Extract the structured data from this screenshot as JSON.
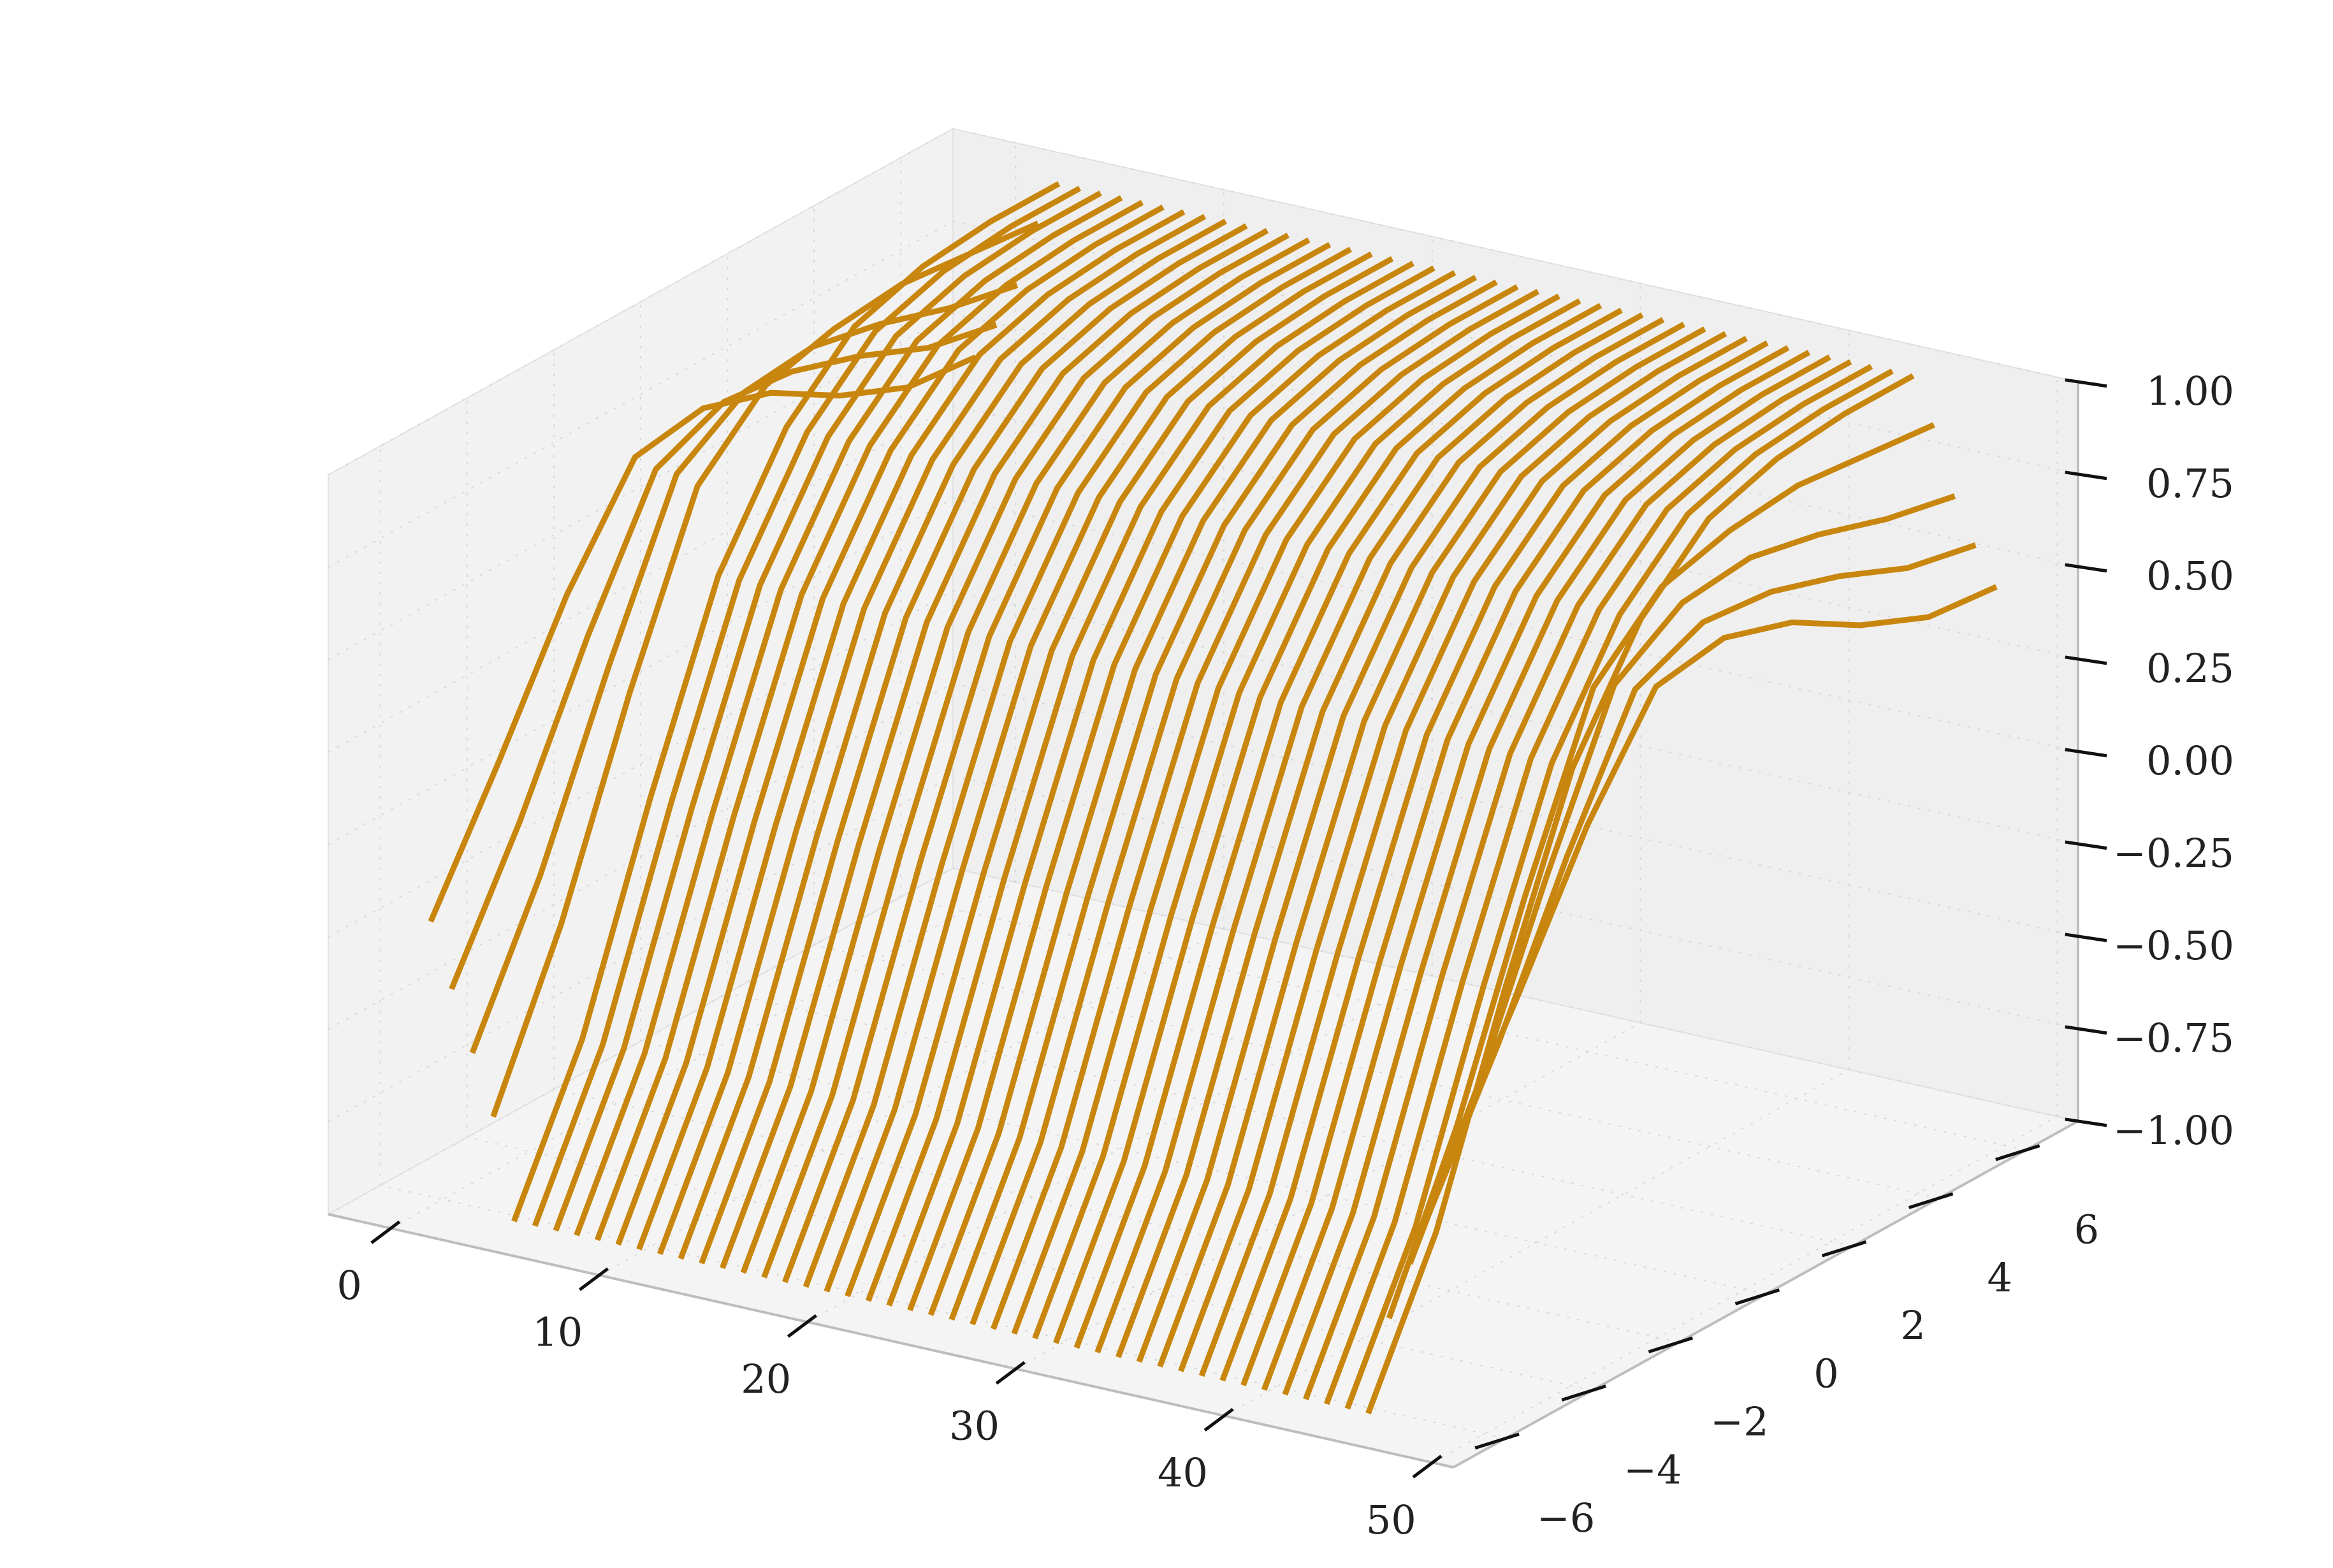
{
  "chart_data": {
    "type": "line",
    "title": "",
    "xlabel": "",
    "ylabel": "",
    "zlabel": "",
    "xlim": [
      -3,
      51
    ],
    "ylim": [
      -7.2,
      7.2
    ],
    "zlim": [
      -1,
      1
    ],
    "x_ticks": [
      "0",
      "10",
      "20",
      "30",
      "40",
      "50"
    ],
    "y_ticks": [
      "−6",
      "−4",
      "−2",
      "0",
      "2",
      "4",
      "6"
    ],
    "z_ticks": [
      "−1.00",
      "−0.75",
      "−0.50",
      "−0.25",
      "0.00",
      "0.25",
      "0.50",
      "0.75",
      "1.00"
    ],
    "grid": true,
    "line_color": "#c8860e",
    "pane_color": "#f2f2f2",
    "y_values": [
      -6.28,
      -4.71,
      -3.14,
      -1.57,
      0,
      1.57,
      3.14,
      4.71,
      6.28
    ],
    "series_note_x": [
      0,
      1,
      2,
      3,
      4,
      5,
      6,
      7,
      8,
      9,
      10,
      11,
      12,
      13,
      14,
      15,
      16,
      17,
      18,
      19,
      20,
      21,
      22,
      23,
      24,
      25,
      26,
      27,
      28,
      29,
      30,
      31,
      32,
      33,
      34,
      35,
      36,
      37,
      38,
      39,
      40,
      41,
      42,
      43,
      44,
      45,
      46,
      47,
      48,
      49
    ],
    "series": [
      {
        "x": 0,
        "z": [
          -0.23,
          0.1,
          0.45,
          0.72,
          0.75,
          0.69,
          0.58,
          0.5,
          0.48
        ]
      },
      {
        "x": 1,
        "z": [
          -0.4,
          -0.05,
          0.35,
          0.7,
          0.78,
          0.76,
          0.7,
          0.62,
          0.58
        ]
      },
      {
        "x": 2,
        "z": [
          -0.56,
          -0.18,
          0.28,
          0.7,
          0.82,
          0.84,
          0.8,
          0.74,
          0.7
        ]
      },
      {
        "x": 3,
        "z": [
          -0.72,
          -0.3,
          0.22,
          0.68,
          0.85,
          0.9,
          0.92,
          0.9,
          0.88
        ]
      },
      {
        "x": 4,
        "z": [
          -0.99,
          -0.6,
          -0.05,
          0.45,
          0.75,
          0.92,
          0.98,
          1.0,
          1.0
        ]
      },
      {
        "x": 5,
        "z": [
          -0.99,
          -0.6,
          -0.05,
          0.45,
          0.75,
          0.92,
          0.98,
          1.0,
          1.0
        ]
      },
      {
        "x": 6,
        "z": [
          -0.99,
          -0.6,
          -0.05,
          0.45,
          0.75,
          0.92,
          0.98,
          1.0,
          1.0
        ]
      },
      {
        "x": 7,
        "z": [
          -0.99,
          -0.6,
          -0.05,
          0.45,
          0.75,
          0.92,
          0.98,
          1.0,
          1.0
        ]
      },
      {
        "x": 8,
        "z": [
          -0.99,
          -0.6,
          -0.05,
          0.45,
          0.75,
          0.92,
          0.98,
          1.0,
          1.0
        ]
      },
      {
        "x": 9,
        "z": [
          -0.99,
          -0.6,
          -0.05,
          0.45,
          0.75,
          0.92,
          0.98,
          1.0,
          1.0
        ]
      },
      {
        "x": 10,
        "z": [
          -0.99,
          -0.6,
          -0.05,
          0.45,
          0.75,
          0.92,
          0.98,
          1.0,
          1.0
        ]
      },
      {
        "x": 11,
        "z": [
          -0.99,
          -0.6,
          -0.05,
          0.45,
          0.75,
          0.92,
          0.98,
          1.0,
          1.0
        ]
      },
      {
        "x": 12,
        "z": [
          -0.99,
          -0.6,
          -0.05,
          0.45,
          0.75,
          0.92,
          0.98,
          1.0,
          1.0
        ]
      },
      {
        "x": 13,
        "z": [
          -0.99,
          -0.6,
          -0.05,
          0.45,
          0.75,
          0.92,
          0.98,
          1.0,
          1.0
        ]
      },
      {
        "x": 14,
        "z": [
          -0.99,
          -0.6,
          -0.05,
          0.45,
          0.75,
          0.92,
          0.98,
          1.0,
          1.0
        ]
      },
      {
        "x": 15,
        "z": [
          -0.99,
          -0.6,
          -0.05,
          0.45,
          0.75,
          0.92,
          0.98,
          1.0,
          1.0
        ]
      },
      {
        "x": 16,
        "z": [
          -0.99,
          -0.6,
          -0.05,
          0.45,
          0.75,
          0.92,
          0.98,
          1.0,
          1.0
        ]
      },
      {
        "x": 17,
        "z": [
          -0.99,
          -0.6,
          -0.05,
          0.45,
          0.75,
          0.92,
          0.98,
          1.0,
          1.0
        ]
      },
      {
        "x": 18,
        "z": [
          -0.99,
          -0.6,
          -0.05,
          0.45,
          0.75,
          0.92,
          0.98,
          1.0,
          1.0
        ]
      },
      {
        "x": 19,
        "z": [
          -0.99,
          -0.6,
          -0.05,
          0.45,
          0.75,
          0.92,
          0.98,
          1.0,
          1.0
        ]
      },
      {
        "x": 20,
        "z": [
          -0.99,
          -0.6,
          -0.05,
          0.45,
          0.75,
          0.92,
          0.98,
          1.0,
          1.0
        ]
      },
      {
        "x": 21,
        "z": [
          -0.99,
          -0.6,
          -0.05,
          0.45,
          0.75,
          0.92,
          0.98,
          1.0,
          1.0
        ]
      },
      {
        "x": 22,
        "z": [
          -0.99,
          -0.6,
          -0.05,
          0.45,
          0.75,
          0.92,
          0.98,
          1.0,
          1.0
        ]
      },
      {
        "x": 23,
        "z": [
          -0.99,
          -0.6,
          -0.05,
          0.45,
          0.75,
          0.92,
          0.98,
          1.0,
          1.0
        ]
      },
      {
        "x": 24,
        "z": [
          -0.99,
          -0.6,
          -0.05,
          0.45,
          0.75,
          0.92,
          0.98,
          1.0,
          1.0
        ]
      },
      {
        "x": 25,
        "z": [
          -0.99,
          -0.6,
          -0.05,
          0.45,
          0.75,
          0.92,
          0.98,
          1.0,
          1.0
        ]
      },
      {
        "x": 26,
        "z": [
          -0.99,
          -0.6,
          -0.05,
          0.45,
          0.75,
          0.92,
          0.98,
          1.0,
          1.0
        ]
      },
      {
        "x": 27,
        "z": [
          -0.99,
          -0.6,
          -0.05,
          0.45,
          0.75,
          0.92,
          0.98,
          1.0,
          1.0
        ]
      },
      {
        "x": 28,
        "z": [
          -0.99,
          -0.6,
          -0.05,
          0.45,
          0.75,
          0.92,
          0.98,
          1.0,
          1.0
        ]
      },
      {
        "x": 29,
        "z": [
          -0.99,
          -0.6,
          -0.05,
          0.45,
          0.75,
          0.92,
          0.98,
          1.0,
          1.0
        ]
      },
      {
        "x": 30,
        "z": [
          -0.99,
          -0.6,
          -0.05,
          0.45,
          0.75,
          0.92,
          0.98,
          1.0,
          1.0
        ]
      },
      {
        "x": 31,
        "z": [
          -0.99,
          -0.6,
          -0.05,
          0.45,
          0.75,
          0.92,
          0.98,
          1.0,
          1.0
        ]
      },
      {
        "x": 32,
        "z": [
          -0.99,
          -0.6,
          -0.05,
          0.45,
          0.75,
          0.92,
          0.98,
          1.0,
          1.0
        ]
      },
      {
        "x": 33,
        "z": [
          -0.99,
          -0.6,
          -0.05,
          0.45,
          0.75,
          0.92,
          0.98,
          1.0,
          1.0
        ]
      },
      {
        "x": 34,
        "z": [
          -0.99,
          -0.6,
          -0.05,
          0.45,
          0.75,
          0.92,
          0.98,
          1.0,
          1.0
        ]
      },
      {
        "x": 35,
        "z": [
          -0.99,
          -0.6,
          -0.05,
          0.45,
          0.75,
          0.92,
          0.98,
          1.0,
          1.0
        ]
      },
      {
        "x": 36,
        "z": [
          -0.99,
          -0.6,
          -0.05,
          0.45,
          0.75,
          0.92,
          0.98,
          1.0,
          1.0
        ]
      },
      {
        "x": 37,
        "z": [
          -0.99,
          -0.6,
          -0.05,
          0.45,
          0.75,
          0.92,
          0.98,
          1.0,
          1.0
        ]
      },
      {
        "x": 38,
        "z": [
          -0.99,
          -0.6,
          -0.05,
          0.45,
          0.75,
          0.92,
          0.98,
          1.0,
          1.0
        ]
      },
      {
        "x": 39,
        "z": [
          -0.99,
          -0.6,
          -0.05,
          0.45,
          0.75,
          0.92,
          0.98,
          1.0,
          1.0
        ]
      },
      {
        "x": 40,
        "z": [
          -0.99,
          -0.6,
          -0.05,
          0.45,
          0.75,
          0.92,
          0.98,
          1.0,
          1.0
        ]
      },
      {
        "x": 41,
        "z": [
          -0.99,
          -0.6,
          -0.05,
          0.45,
          0.75,
          0.92,
          0.98,
          1.0,
          1.0
        ]
      },
      {
        "x": 42,
        "z": [
          -0.99,
          -0.6,
          -0.05,
          0.45,
          0.75,
          0.92,
          0.98,
          1.0,
          1.0
        ]
      },
      {
        "x": 43,
        "z": [
          -0.99,
          -0.6,
          -0.05,
          0.45,
          0.75,
          0.92,
          0.98,
          1.0,
          1.0
        ]
      },
      {
        "x": 44,
        "z": [
          -0.99,
          -0.6,
          -0.05,
          0.45,
          0.75,
          0.92,
          0.98,
          1.0,
          1.0
        ]
      },
      {
        "x": 45,
        "z": [
          -0.99,
          -0.6,
          -0.05,
          0.45,
          0.75,
          0.92,
          0.98,
          1.0,
          1.0
        ]
      },
      {
        "x": 46,
        "z": [
          -0.72,
          -0.3,
          0.22,
          0.68,
          0.85,
          0.9,
          0.92,
          0.9,
          0.88
        ]
      },
      {
        "x": 47,
        "z": [
          -0.56,
          -0.18,
          0.28,
          0.7,
          0.82,
          0.84,
          0.8,
          0.74,
          0.7
        ]
      },
      {
        "x": 48,
        "z": [
          -0.4,
          -0.05,
          0.35,
          0.7,
          0.78,
          0.76,
          0.7,
          0.62,
          0.58
        ]
      },
      {
        "x": 49,
        "z": [
          -0.23,
          0.1,
          0.45,
          0.72,
          0.75,
          0.69,
          0.58,
          0.5,
          0.48
        ]
      }
    ]
  }
}
